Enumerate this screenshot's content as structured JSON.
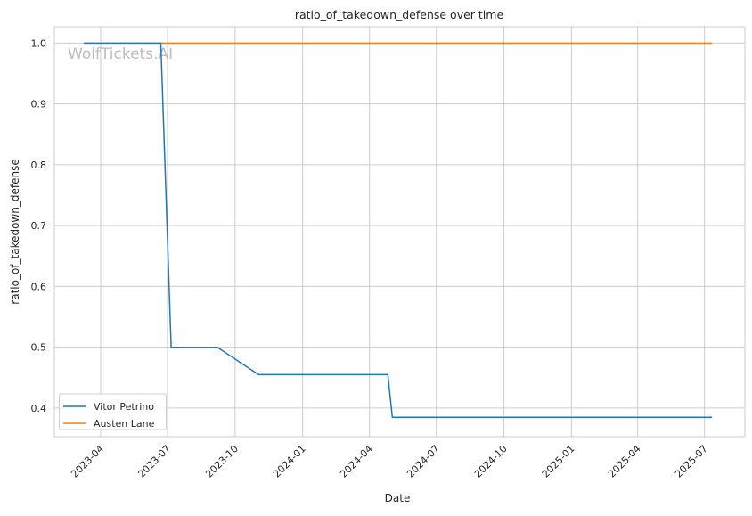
{
  "chart_data": {
    "type": "line",
    "title": "ratio_of_takedown_defense over time",
    "xlabel": "Date",
    "ylabel": "ratio_of_takedown_defense",
    "watermark": "WolfTickets.AI",
    "xlim": [
      "2023-01-28",
      "2025-08-25"
    ],
    "ylim": [
      0.353,
      1.027
    ],
    "xticks": [
      "2023-04",
      "2023-07",
      "2023-10",
      "2024-01",
      "2024-04",
      "2024-07",
      "2024-10",
      "2025-01",
      "2025-04",
      "2025-07"
    ],
    "yticks": [
      "0.4",
      "0.5",
      "0.6",
      "0.7",
      "0.8",
      "0.9",
      "1.0"
    ],
    "grid": true,
    "legend_position": "lower-left",
    "series": [
      {
        "name": "Vitor Petrino",
        "color": "#1f77b4",
        "x": [
          "2023-03-09",
          "2023-06-22",
          "2023-07-06",
          "2023-09-07",
          "2023-11-02",
          "2024-04-26",
          "2024-05-02",
          "2025-07-11"
        ],
        "y": [
          1.0,
          1.0,
          0.5,
          0.5,
          0.455,
          0.455,
          0.385,
          0.385
        ]
      },
      {
        "name": "Austen Lane",
        "color": "#ff7f0e",
        "x": [
          "2023-06-22",
          "2025-07-11"
        ],
        "y": [
          1.0,
          1.0
        ]
      }
    ]
  }
}
